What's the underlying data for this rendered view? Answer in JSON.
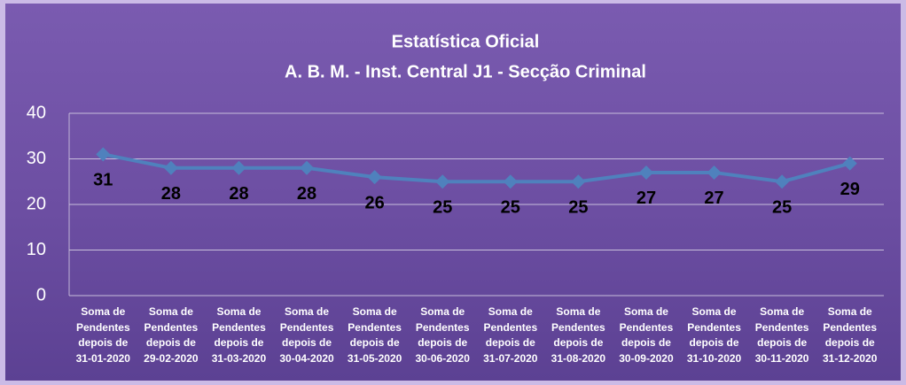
{
  "chart_data": {
    "type": "line",
    "title": "Estatística Oficial",
    "subtitle": "A. B. M. - Inst. Central J1 - Secção Criminal",
    "categories": [
      "Soma de Pendentes depois de 31-01-2020",
      "Soma de Pendentes depois de 29-02-2020",
      "Soma de Pendentes depois de 31-03-2020",
      "Soma de Pendentes depois de 30-04-2020",
      "Soma de Pendentes depois de 31-05-2020",
      "Soma de Pendentes depois de 30-06-2020",
      "Soma de Pendentes depois de 31-07-2020",
      "Soma de Pendentes depois de 31-08-2020",
      "Soma de Pendentes depois de 30-09-2020",
      "Soma de Pendentes depois de 31-10-2020",
      "Soma de Pendentes depois de 30-11-2020",
      "Soma de Pendentes depois de 31-12-2020"
    ],
    "values": [
      31,
      28,
      28,
      28,
      26,
      25,
      25,
      25,
      27,
      27,
      25,
      29
    ],
    "color": "#4f81bd",
    "ylim": [
      0,
      40
    ],
    "yticks": [
      0,
      10,
      20,
      30,
      40
    ],
    "grid": true
  }
}
